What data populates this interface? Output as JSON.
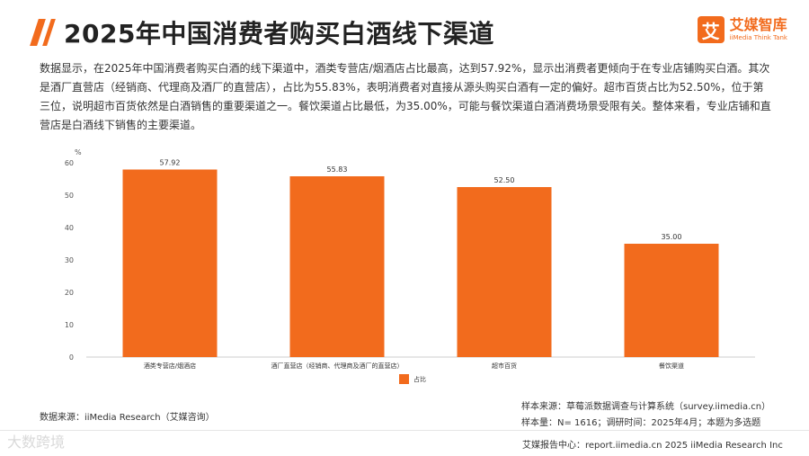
{
  "header": {
    "title": "2025年中国消费者购买白酒线下渠道"
  },
  "brand": {
    "mark": "艾",
    "name": "艾媒智库",
    "sub": "iiMedia Think Tank",
    "accent": "#f26b1d"
  },
  "description": "数据显示，在2025年中国消费者购买白酒的线下渠道中，酒类专营店/烟酒店占比最高，达到57.92%，显示出消费者更倾向于在专业店铺购买白酒。其次是酒厂直营店（经销商、代理商及酒厂的直营店），占比为55.83%，表明消费者对直接从源头购买白酒有一定的偏好。超市百货占比为52.50%，位于第三位，说明超市百货依然是白酒销售的重要渠道之一。餐饮渠道占比最低，为35.00%，可能与餐饮渠道白酒消费场景受限有关。整体来看，专业店铺和直营店是白酒线下销售的主要渠道。",
  "chart_data": {
    "type": "bar",
    "categories": [
      "酒类专营店/烟酒店",
      "酒厂直营店（经销商、代理商及酒厂的直营店）",
      "超市百货",
      "餐饮渠道"
    ],
    "series": [
      {
        "name": "占比",
        "values": [
          57.92,
          55.83,
          52.5,
          35.0
        ],
        "labels": [
          "57.92",
          "55.83",
          "52.50",
          "35.00"
        ],
        "color": "#f26b1d"
      }
    ],
    "title": "",
    "xlabel": "",
    "ylabel": "%",
    "ylim": [
      0,
      60
    ],
    "yticks": [
      "0",
      "10",
      "20",
      "30",
      "40",
      "50",
      "60"
    ],
    "grid": false,
    "legend": "bottom-center"
  },
  "footer": {
    "source": "数据来源：iiMedia Research（艾媒咨询）",
    "sample_source": "样本来源：草莓派数据调查与计算系统（survey.iimedia.cn）",
    "sample_info": "样本量：N= 1616；调研时间：2025年4月；本题为多选题",
    "report": "艾媒报告中心：report.iimedia.cn    2025 iiMedia Research Inc",
    "watermark": "大数跨境"
  }
}
